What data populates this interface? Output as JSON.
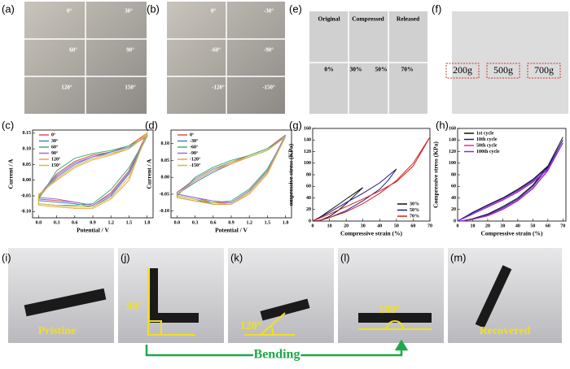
{
  "panels": {
    "a": {
      "label": "(a)",
      "texts": [
        "0°",
        "30°",
        "60°",
        "90°",
        "120°",
        "150°"
      ]
    },
    "b": {
      "label": "(b)",
      "texts": [
        "0°",
        "-30°",
        "-60°",
        "-90°",
        "-120°",
        "-150°"
      ]
    },
    "e": {
      "label": "(e)",
      "texts": [
        "Original",
        "Compressed",
        "Released",
        "0%",
        "30%",
        "50%",
        "70%"
      ]
    },
    "f": {
      "label": "(f)",
      "texts": [
        "200g",
        "500g",
        "700g"
      ]
    },
    "c": {
      "label": "(c)"
    },
    "d": {
      "label": "(d)"
    },
    "g": {
      "label": "(g)"
    },
    "h": {
      "label": "(h)"
    },
    "i": {
      "label": "(i)",
      "texts": [
        "Pristine"
      ]
    },
    "j": {
      "label": "(j)",
      "texts": [
        "90°"
      ]
    },
    "k": {
      "label": "(k)",
      "texts": [
        "120°"
      ]
    },
    "l": {
      "label": "(l)",
      "texts": [
        "180°"
      ]
    },
    "m": {
      "label": "(m)",
      "texts": [
        "Recovered"
      ]
    },
    "bending": "Bending"
  },
  "chart_data": [
    {
      "type": "line",
      "xlabel": "Potential / V",
      "ylabel": "Current / A",
      "legend": "upper left",
      "xlim": [
        -0.1,
        1.9
      ],
      "ylim": [
        -0.12,
        0.16
      ],
      "xticks": [
        {
          "value": 0,
          "label": "0.0"
        },
        0.3,
        0.6,
        0.9,
        1.2,
        1.5,
        1.8
      ],
      "yticks": [
        {
          "value": -0.1,
          "label": "-0.10"
        },
        -0.05,
        {
          "value": 0,
          "label": "0.00"
        },
        0.05,
        {
          "value": 0.1,
          "label": "0.10"
        },
        0.15
      ],
      "series": [
        {
          "name": "0°",
          "color": "#e05050",
          "x": [
            0,
            0.3,
            0.6,
            0.9,
            1.2,
            1.5,
            1.8,
            1.5,
            1.2,
            0.9,
            0.6,
            0.3,
            0,
            0
          ],
          "values": [
            -0.05,
            0.02,
            0.06,
            0.08,
            0.09,
            0.11,
            0.15,
            0.03,
            -0.04,
            -0.08,
            -0.07,
            -0.065,
            -0.06,
            -0.05
          ]
        },
        {
          "name": "30°",
          "color": "#4a7fd0",
          "x": [
            0,
            0.3,
            0.6,
            0.9,
            1.2,
            1.5,
            1.8,
            1.5,
            1.2,
            0.9,
            0.6,
            0.3,
            0,
            0
          ],
          "values": [
            -0.055,
            0.01,
            0.05,
            0.075,
            0.09,
            0.105,
            0.14,
            0.02,
            -0.05,
            -0.085,
            -0.075,
            -0.07,
            -0.065,
            -0.055
          ]
        },
        {
          "name": "60°",
          "color": "#3cb371",
          "x": [
            0,
            0.3,
            0.6,
            0.9,
            1.2,
            1.5,
            1.8,
            1.5,
            1.2,
            0.9,
            0.6,
            0.3,
            0,
            0
          ],
          "values": [
            -0.06,
            0.03,
            0.07,
            0.085,
            0.095,
            0.11,
            0.14,
            0.04,
            -0.03,
            -0.075,
            -0.08,
            -0.08,
            -0.075,
            -0.06
          ]
        },
        {
          "name": "90°",
          "color": "#9370db",
          "x": [
            0,
            0.3,
            0.6,
            0.9,
            1.2,
            1.5,
            1.8,
            1.5,
            1.2,
            0.9,
            0.6,
            0.3,
            0,
            0
          ],
          "values": [
            -0.05,
            0.015,
            0.055,
            0.075,
            0.085,
            0.1,
            0.145,
            0.025,
            -0.045,
            -0.08,
            -0.07,
            -0.06,
            -0.055,
            -0.05
          ]
        },
        {
          "name": "120°",
          "color": "#f0a040",
          "x": [
            0,
            0.3,
            0.6,
            0.9,
            1.2,
            1.5,
            1.8,
            1.5,
            1.2,
            0.9,
            0.6,
            0.3,
            0,
            0
          ],
          "values": [
            -0.045,
            0.0,
            0.04,
            0.065,
            0.08,
            0.1,
            0.15,
            0.0,
            -0.06,
            -0.09,
            -0.09,
            -0.085,
            -0.08,
            -0.045
          ]
        },
        {
          "name": "150°",
          "color": "#c8c040",
          "x": [
            0,
            0.3,
            0.6,
            0.9,
            1.2,
            1.5,
            1.8,
            1.5,
            1.2,
            0.9,
            0.6,
            0.3,
            0,
            0
          ],
          "values": [
            -0.05,
            0.005,
            0.045,
            0.07,
            0.085,
            0.1,
            0.145,
            0.01,
            -0.055,
            -0.085,
            -0.085,
            -0.08,
            -0.075,
            -0.05
          ]
        }
      ]
    },
    {
      "type": "line",
      "xlabel": "Potential / V",
      "ylabel": "Current / A",
      "legend": "upper left",
      "xlim": [
        -0.1,
        1.9
      ],
      "ylim": [
        -0.12,
        0.14
      ],
      "xticks": [
        {
          "value": 0,
          "label": "0.0"
        },
        0.3,
        0.6,
        0.9,
        1.2,
        1.5,
        1.8
      ],
      "yticks": [
        {
          "value": -0.1,
          "label": "-0.10"
        },
        -0.05,
        {
          "value": 0,
          "label": "0.00"
        },
        0.05,
        {
          "value": 0.1,
          "label": "0.10"
        }
      ],
      "series": [
        {
          "name": "0°",
          "color": "#e05050",
          "x": [
            0,
            0.3,
            0.6,
            0.9,
            1.2,
            1.5,
            1.8,
            1.5,
            1.2,
            0.9,
            0.6,
            0.3,
            0,
            0
          ],
          "values": [
            -0.045,
            -0.01,
            0.02,
            0.045,
            0.065,
            0.085,
            0.125,
            0.02,
            -0.04,
            -0.075,
            -0.075,
            -0.06,
            -0.05,
            -0.045
          ]
        },
        {
          "name": "-30°",
          "color": "#4a7fd0",
          "x": [
            0,
            0.3,
            0.6,
            0.9,
            1.2,
            1.5,
            1.8,
            1.5,
            1.2,
            0.9,
            0.6,
            0.3,
            0,
            0
          ],
          "values": [
            -0.05,
            -0.015,
            0.015,
            0.04,
            0.06,
            0.08,
            0.12,
            0.015,
            -0.045,
            -0.08,
            -0.08,
            -0.065,
            -0.055,
            -0.05
          ]
        },
        {
          "name": "-60°",
          "color": "#3cb371",
          "x": [
            0,
            0.3,
            0.6,
            0.9,
            1.2,
            1.5,
            1.8,
            1.5,
            1.2,
            0.9,
            0.6,
            0.3,
            0,
            0
          ],
          "values": [
            -0.055,
            0.0,
            0.03,
            0.05,
            0.065,
            0.085,
            0.12,
            0.025,
            -0.035,
            -0.07,
            -0.075,
            -0.07,
            -0.06,
            -0.055
          ]
        },
        {
          "name": "-90°",
          "color": "#9370db",
          "x": [
            0,
            0.3,
            0.6,
            0.9,
            1.2,
            1.5,
            1.8,
            1.5,
            1.2,
            0.9,
            0.6,
            0.3,
            0,
            0
          ],
          "values": [
            -0.045,
            -0.005,
            0.025,
            0.045,
            0.06,
            0.08,
            0.125,
            0.02,
            -0.04,
            -0.075,
            -0.07,
            -0.06,
            -0.05,
            -0.045
          ]
        },
        {
          "name": "-120°",
          "color": "#f0a040",
          "x": [
            0,
            0.3,
            0.6,
            0.9,
            1.2,
            1.5,
            1.8,
            1.5,
            1.2,
            0.9,
            0.6,
            0.3,
            0,
            0
          ],
          "values": [
            -0.05,
            -0.01,
            0.02,
            0.04,
            0.06,
            0.08,
            0.12,
            0.01,
            -0.05,
            -0.08,
            -0.08,
            -0.07,
            -0.06,
            -0.05
          ]
        },
        {
          "name": "-150°",
          "color": "#c8c040",
          "x": [
            0,
            0.3,
            0.6,
            0.9,
            1.2,
            1.5,
            1.8,
            1.5,
            1.2,
            0.9,
            0.6,
            0.3,
            0,
            0
          ],
          "values": [
            -0.05,
            -0.01,
            0.02,
            0.045,
            0.06,
            0.08,
            0.12,
            0.015,
            -0.045,
            -0.08,
            -0.075,
            -0.065,
            -0.055,
            -0.05
          ]
        }
      ]
    },
    {
      "type": "line",
      "xlabel": "Compressive strain (%)",
      "ylabel": "ompressive stress (KPa)",
      "legend": "lower right",
      "xlim": [
        0,
        70
      ],
      "ylim": [
        0,
        160
      ],
      "xticks": [
        0,
        10,
        20,
        30,
        40,
        50,
        60,
        70
      ],
      "yticks": [
        0,
        20,
        40,
        60,
        80,
        100,
        120,
        140,
        160
      ],
      "series": [
        {
          "name": "30%",
          "color": "#111111",
          "x": [
            0,
            5,
            10,
            15,
            20,
            25,
            30,
            25,
            20,
            15,
            10,
            5,
            2
          ],
          "values": [
            0,
            8,
            18,
            28,
            38,
            48,
            58,
            44,
            30,
            18,
            8,
            2,
            0
          ]
        },
        {
          "name": "50%",
          "color": "#1a1a8c",
          "x": [
            0,
            10,
            20,
            30,
            40,
            50,
            45,
            40,
            30,
            20,
            10,
            3
          ],
          "values": [
            0,
            15,
            32,
            48,
            66,
            90,
            70,
            55,
            35,
            18,
            6,
            0
          ]
        },
        {
          "name": "70%",
          "color": "#d42020",
          "x": [
            0,
            10,
            20,
            30,
            40,
            50,
            60,
            70,
            60,
            50,
            40,
            30,
            20,
            10,
            3
          ],
          "values": [
            0,
            12,
            25,
            38,
            52,
            68,
            95,
            145,
            100,
            70,
            48,
            30,
            16,
            6,
            0
          ]
        }
      ]
    },
    {
      "type": "line",
      "xlabel": "Compressive strain (%)",
      "ylabel": "Compressive stress (KPa)",
      "legend": "upper left",
      "xlim": [
        0,
        72
      ],
      "ylim": [
        0,
        160
      ],
      "xticks": [
        0,
        10,
        20,
        30,
        40,
        50,
        60,
        70
      ],
      "yticks": [
        0,
        20,
        40,
        60,
        80,
        100,
        120,
        140,
        160
      ],
      "series": [
        {
          "name": "1st cycle",
          "color": "#111111",
          "x": [
            0,
            10,
            20,
            30,
            40,
            50,
            60,
            70,
            60,
            50,
            40,
            30,
            20,
            10,
            2
          ],
          "values": [
            0,
            15,
            28,
            40,
            55,
            72,
            95,
            145,
            95,
            62,
            40,
            25,
            12,
            4,
            0
          ]
        },
        {
          "name": "10th cycle",
          "color": "#1a1a8c",
          "x": [
            0,
            10,
            20,
            30,
            40,
            50,
            60,
            70,
            60,
            50,
            40,
            30,
            20,
            10,
            2
          ],
          "values": [
            0,
            14,
            27,
            39,
            53,
            70,
            93,
            140,
            92,
            60,
            38,
            23,
            11,
            3,
            0
          ]
        },
        {
          "name": "50th cycle",
          "color": "#e020c0",
          "x": [
            0,
            10,
            20,
            30,
            40,
            50,
            60,
            70,
            60,
            50,
            40,
            30,
            20,
            10,
            2
          ],
          "values": [
            0,
            12,
            25,
            37,
            51,
            68,
            90,
            135,
            88,
            57,
            36,
            21,
            10,
            3,
            0
          ]
        },
        {
          "name": "100th cycle",
          "color": "#8a2be2",
          "x": [
            0,
            10,
            20,
            30,
            40,
            50,
            60,
            70,
            60,
            50,
            40,
            30,
            20,
            10,
            2
          ],
          "values": [
            0,
            12,
            24,
            36,
            50,
            67,
            89,
            135,
            87,
            56,
            35,
            20,
            9,
            3,
            0
          ]
        }
      ]
    }
  ]
}
